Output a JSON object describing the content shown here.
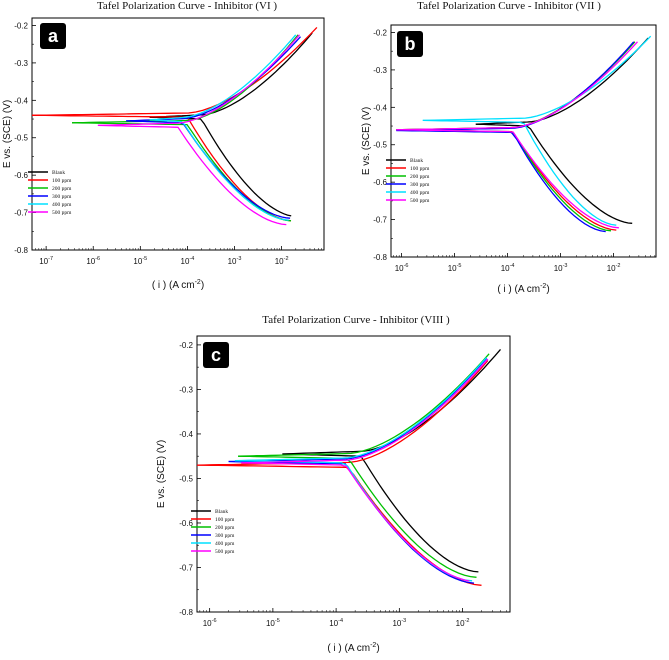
{
  "chart_data": [
    {
      "type": "line",
      "panel_label": "a",
      "title": "Tafel Polarization Curve - Inhibitor (VI )",
      "xlabel": "( i ) (A cm",
      "xlabel_sup": "-2",
      "xlabel_close": ")",
      "ylabel": "E vs. (SCE) (V)",
      "xlim_log10": [
        -7.3,
        -1.1
      ],
      "ylim": [
        -0.8,
        -0.18
      ],
      "x_ticks": [
        {
          "e": -7,
          "label": "10-7"
        },
        {
          "e": -6,
          "label": "10-6"
        },
        {
          "e": -5,
          "label": "10-5"
        },
        {
          "e": -4,
          "label": "10-4"
        },
        {
          "e": -3,
          "label": "10-3"
        },
        {
          "e": -2,
          "label": "10-2"
        }
      ],
      "y_ticks": [
        {
          "v": -0.8,
          "label": "-0.8"
        },
        {
          "v": -0.7,
          "label": "-0.7"
        },
        {
          "v": -0.6,
          "label": "-0.6"
        },
        {
          "v": -0.5,
          "label": "-0.5"
        },
        {
          "v": -0.4,
          "label": "-0.4"
        },
        {
          "v": -0.3,
          "label": "-0.3"
        },
        {
          "v": -0.2,
          "label": "-0.2"
        }
      ],
      "legend_position": "lower-left",
      "series": [
        {
          "name": "Blank",
          "color": "#000000",
          "ecorr": -0.445,
          "icorr_log": -3.7,
          "start_log": -4.8,
          "anodic_end": [
            -1.35,
            -0.22
          ],
          "cathodic_end": [
            -1.72,
            -0.71
          ]
        },
        {
          "name": "100 ppm",
          "color": "#ff0000",
          "ecorr": -0.44,
          "icorr_log": -4.0,
          "start_log": -7.3,
          "anodic_end": [
            -1.25,
            -0.205
          ],
          "cathodic_end": [
            -1.8,
            -0.722
          ]
        },
        {
          "name": "200 ppm",
          "color": "#00c000",
          "ecorr": -0.46,
          "icorr_log": -4.0,
          "start_log": -6.45,
          "anodic_end": [
            -1.65,
            -0.225
          ],
          "cathodic_end": [
            -1.8,
            -0.722
          ]
        },
        {
          "name": "300 ppm",
          "color": "#0000ff",
          "ecorr": -0.455,
          "icorr_log": -4.1,
          "start_log": -5.3,
          "anodic_end": [
            -1.6,
            -0.23
          ],
          "cathodic_end": [
            -1.82,
            -0.715
          ]
        },
        {
          "name": "400 ppm",
          "color": "#00e0ff",
          "ecorr": -0.452,
          "icorr_log": -4.1,
          "start_log": -4.8,
          "anodic_end": [
            -1.7,
            -0.225
          ],
          "cathodic_end": [
            -1.85,
            -0.72
          ]
        },
        {
          "name": "500 ppm",
          "color": "#ff00ff",
          "ecorr": -0.467,
          "icorr_log": -4.2,
          "start_log": -5.9,
          "anodic_end": [
            -1.62,
            -0.225
          ],
          "cathodic_end": [
            -1.9,
            -0.732
          ]
        }
      ]
    },
    {
      "type": "line",
      "panel_label": "b",
      "title": "Tafel Polarization Curve - Inhibitor (VII )",
      "xlabel": "( i ) (A cm",
      "xlabel_sup": "-2",
      "xlabel_close": ")",
      "ylabel": "E vs. (SCE) (V)",
      "xlim_log10": [
        -6.2,
        -1.2
      ],
      "ylim": [
        -0.8,
        -0.18
      ],
      "x_ticks": [
        {
          "e": -6,
          "label": "10-6"
        },
        {
          "e": -5,
          "label": "10-5"
        },
        {
          "e": -4,
          "label": "10-4"
        },
        {
          "e": -3,
          "label": "10-3"
        },
        {
          "e": -2,
          "label": "10-2"
        }
      ],
      "y_ticks": [
        {
          "v": -0.8,
          "label": "-0.8"
        },
        {
          "v": -0.7,
          "label": "-0.7"
        },
        {
          "v": -0.6,
          "label": "-0.6"
        },
        {
          "v": -0.5,
          "label": "-0.5"
        },
        {
          "v": -0.4,
          "label": "-0.4"
        },
        {
          "v": -0.3,
          "label": "-0.3"
        },
        {
          "v": -0.2,
          "label": "-0.2"
        }
      ],
      "legend_position": "top-left",
      "series": [
        {
          "name": "Blank",
          "color": "#000000",
          "ecorr": -0.445,
          "icorr_log": -3.6,
          "start_log": -4.6,
          "anodic_end": [
            -1.35,
            -0.215
          ],
          "cathodic_end": [
            -1.65,
            -0.71
          ]
        },
        {
          "name": "100 ppm",
          "color": "#ff0000",
          "ecorr": -0.46,
          "icorr_log": -3.9,
          "start_log": -6.1,
          "anodic_end": [
            -1.6,
            -0.225
          ],
          "cathodic_end": [
            -1.95,
            -0.728
          ]
        },
        {
          "name": "200 ppm",
          "color": "#00c000",
          "ecorr": -0.46,
          "icorr_log": -3.9,
          "start_log": -6.1,
          "anodic_end": [
            -1.6,
            -0.225
          ],
          "cathodic_end": [
            -2.05,
            -0.73
          ]
        },
        {
          "name": "300 ppm",
          "color": "#0000ff",
          "ecorr": -0.462,
          "icorr_log": -3.9,
          "start_log": -6.1,
          "anodic_end": [
            -1.62,
            -0.225
          ],
          "cathodic_end": [
            -2.15,
            -0.732
          ]
        },
        {
          "name": "400 ppm",
          "color": "#00e0ff",
          "ecorr": -0.435,
          "icorr_log": -3.7,
          "start_log": -5.6,
          "anodic_end": [
            -1.3,
            -0.21
          ],
          "cathodic_end": [
            -1.95,
            -0.715
          ]
        },
        {
          "name": "500 ppm",
          "color": "#ff00ff",
          "ecorr": -0.46,
          "icorr_log": -3.9,
          "start_log": -6.1,
          "anodic_end": [
            -1.55,
            -0.225
          ],
          "cathodic_end": [
            -1.9,
            -0.722
          ]
        }
      ]
    },
    {
      "type": "line",
      "panel_label": "c",
      "title": "Tafel Polarization Curve - Inhibitor (VIII )",
      "xlabel": "( i ) (A cm",
      "xlabel_sup": "-2",
      "xlabel_close": ")",
      "ylabel": "E vs. (SCE) (V)",
      "xlim_log10": [
        -6.2,
        -1.25
      ],
      "ylim": [
        -0.8,
        -0.18
      ],
      "x_ticks": [
        {
          "e": -6,
          "label": "10-6"
        },
        {
          "e": -5,
          "label": "10-5"
        },
        {
          "e": -4,
          "label": "10-4"
        },
        {
          "e": -3,
          "label": "10-3"
        },
        {
          "e": -2,
          "label": "10-2"
        }
      ],
      "y_ticks": [
        {
          "v": -0.8,
          "label": "-0.8"
        },
        {
          "v": -0.7,
          "label": "-0.7"
        },
        {
          "v": -0.6,
          "label": "-0.6"
        },
        {
          "v": -0.5,
          "label": "-0.5"
        },
        {
          "v": -0.4,
          "label": "-0.4"
        },
        {
          "v": -0.3,
          "label": "-0.3"
        },
        {
          "v": -0.2,
          "label": "-0.2"
        }
      ],
      "legend_position": "lower-left",
      "series": [
        {
          "name": "Blank",
          "color": "#000000",
          "ecorr": -0.445,
          "icorr_log": -3.6,
          "start_log": -4.85,
          "anodic_end": [
            -1.4,
            -0.21
          ],
          "cathodic_end": [
            -1.75,
            -0.71
          ]
        },
        {
          "name": "100 ppm",
          "color": "#ff0000",
          "ecorr": -0.47,
          "icorr_log": -3.8,
          "start_log": -6.2,
          "anodic_end": [
            -1.6,
            -0.235
          ],
          "cathodic_end": [
            -1.7,
            -0.74
          ]
        },
        {
          "name": "200 ppm",
          "color": "#00c000",
          "ecorr": -0.45,
          "icorr_log": -3.8,
          "start_log": -5.55,
          "anodic_end": [
            -1.58,
            -0.22
          ],
          "cathodic_end": [
            -1.78,
            -0.722
          ]
        },
        {
          "name": "300 ppm",
          "color": "#0000ff",
          "ecorr": -0.462,
          "icorr_log": -3.85,
          "start_log": -5.7,
          "anodic_end": [
            -1.62,
            -0.23
          ],
          "cathodic_end": [
            -1.82,
            -0.735
          ]
        },
        {
          "name": "400 ppm",
          "color": "#00e0ff",
          "ecorr": -0.46,
          "icorr_log": -3.85,
          "start_log": -5.6,
          "anodic_end": [
            -1.62,
            -0.228
          ],
          "cathodic_end": [
            -1.85,
            -0.73
          ]
        },
        {
          "name": "500 ppm",
          "color": "#ff00ff",
          "ecorr": -0.465,
          "icorr_log": -3.85,
          "start_log": -5.5,
          "anodic_end": [
            -1.6,
            -0.232
          ],
          "cathodic_end": [
            -1.8,
            -0.732
          ]
        }
      ]
    }
  ]
}
